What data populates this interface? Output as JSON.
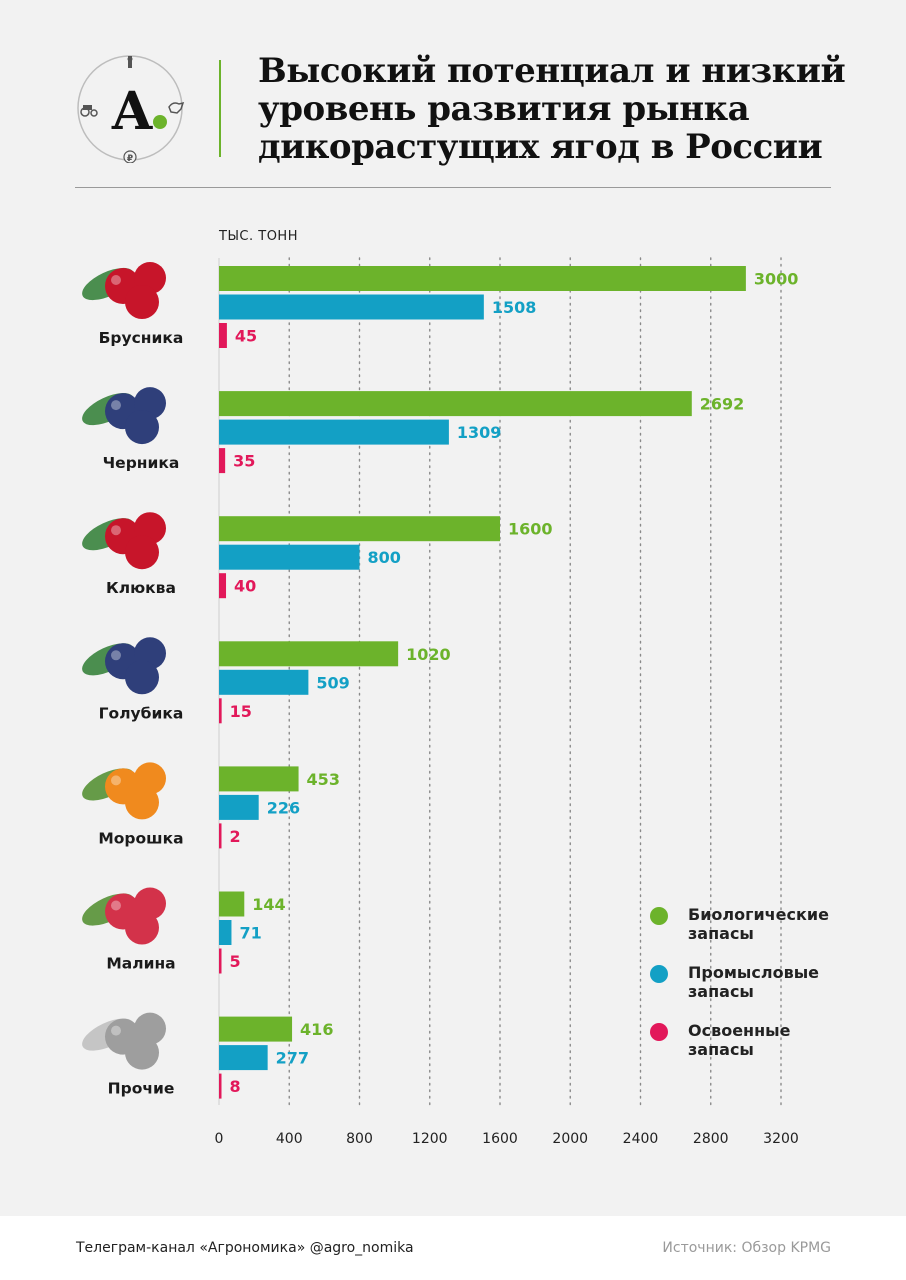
{
  "header": {
    "title_lines": [
      "Высокий потенциал и низкий",
      "уровень развития рынка",
      "дикорастущих ягод в России"
    ],
    "logo_letter": "А",
    "logo_currency": "₽"
  },
  "chart_data": {
    "type": "bar",
    "orientation": "horizontal",
    "unit_label": "ТЫС. ТОНН",
    "categories": [
      "Брусника",
      "Черника",
      "Клюква",
      "Голубика",
      "Морошка",
      "Малина",
      "Прочие"
    ],
    "series": [
      {
        "name": "Биологические запасы",
        "color": "#6cb32b",
        "values": [
          3000,
          2692,
          1600,
          1020,
          453,
          144,
          416
        ]
      },
      {
        "name": "Промысловые запасы",
        "color": "#13a0c5",
        "values": [
          1508,
          1309,
          800,
          509,
          226,
          71,
          277
        ]
      },
      {
        "name": "Освоенные запасы",
        "color": "#e2185a",
        "values": [
          45,
          35,
          40,
          15,
          2,
          5,
          8
        ]
      }
    ],
    "xlim": [
      0,
      3200
    ],
    "xticks": [
      0,
      400,
      800,
      1200,
      1600,
      2000,
      2400,
      2800,
      3200
    ],
    "grid": "vertical dotted",
    "legend_position": "bottom-right"
  },
  "legend": {
    "items": [
      {
        "line1": "Биологические",
        "line2": "запасы",
        "color": "#6cb32b"
      },
      {
        "line1": "Промысловые",
        "line2": "запасы",
        "color": "#13a0c5"
      },
      {
        "line1": "Освоенные",
        "line2": "запасы",
        "color": "#e2185a"
      }
    ]
  },
  "footer": {
    "left": "Телеграм-канал «Агрономика» @agro_nomika",
    "right": "Источник: Обзор KPMG"
  }
}
